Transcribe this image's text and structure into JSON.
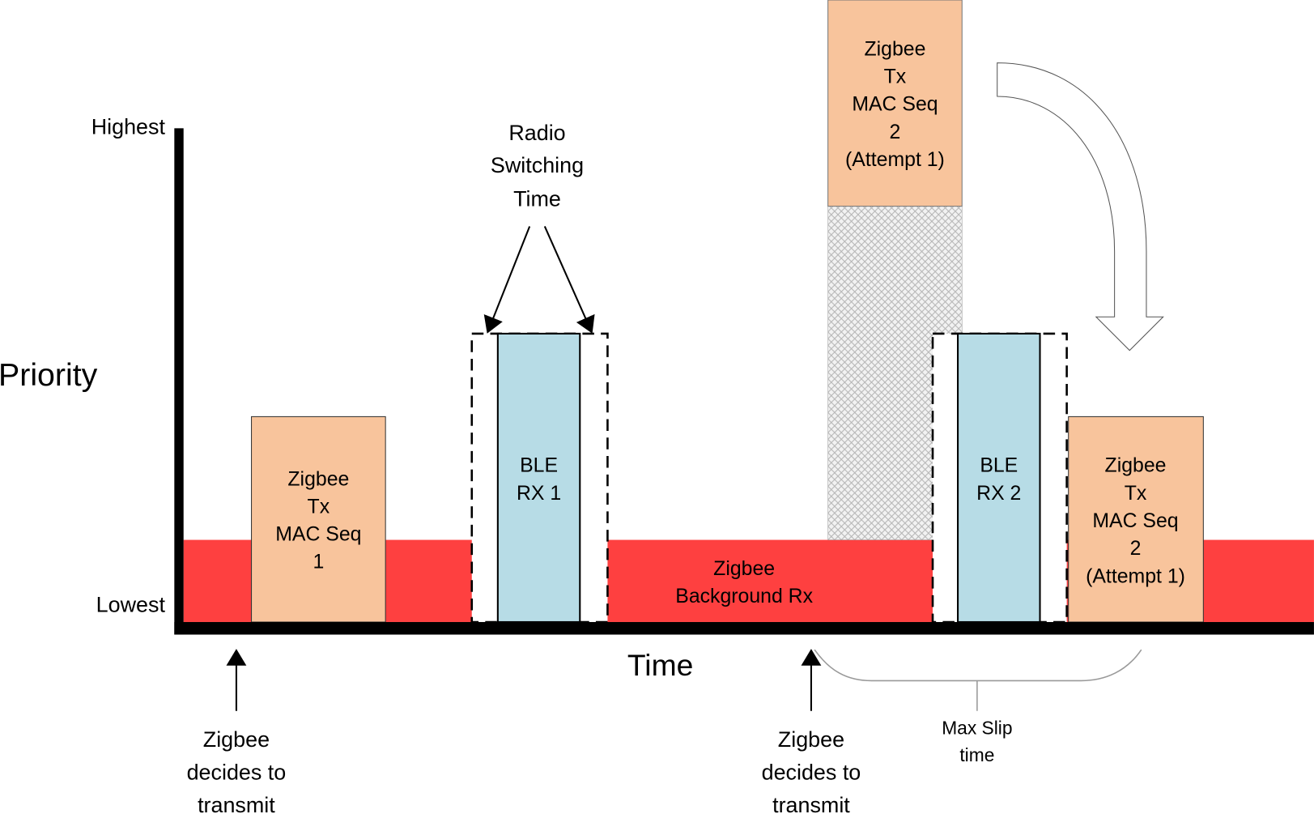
{
  "axes": {
    "y_label": "Priority",
    "y_top": "Highest",
    "y_bottom": "Lowest",
    "x_label": "Time"
  },
  "blocks": {
    "zigbee_tx1": [
      "Zigbee",
      "Tx",
      "MAC Seq",
      "1"
    ],
    "ble_rx1": [
      "BLE",
      "RX 1"
    ],
    "background_rx": [
      "Zigbee",
      "Background Rx"
    ],
    "zigbee_tx2_original": [
      "Zigbee",
      "Tx",
      "MAC Seq",
      "2",
      "(Attempt 1)"
    ],
    "ble_rx2": [
      "BLE",
      "RX 2"
    ],
    "zigbee_tx2_slipped": [
      "Zigbee",
      "Tx",
      "MAC Seq",
      "2",
      "(Attempt 1)"
    ]
  },
  "annotations": {
    "radio_switching": [
      "Radio",
      "Switching",
      "Time"
    ],
    "decides_1": [
      "Zigbee",
      "decides to",
      "transmit"
    ],
    "decides_2": [
      "Zigbee",
      "decides to",
      "transmit"
    ],
    "max_slip": [
      "Max Slip",
      "time"
    ]
  },
  "colors": {
    "zigbee_tx": "#f8c49c",
    "ble_rx": "#b7dce6",
    "background_rx": "#fe4040",
    "hatch": "#bdbdbd"
  }
}
